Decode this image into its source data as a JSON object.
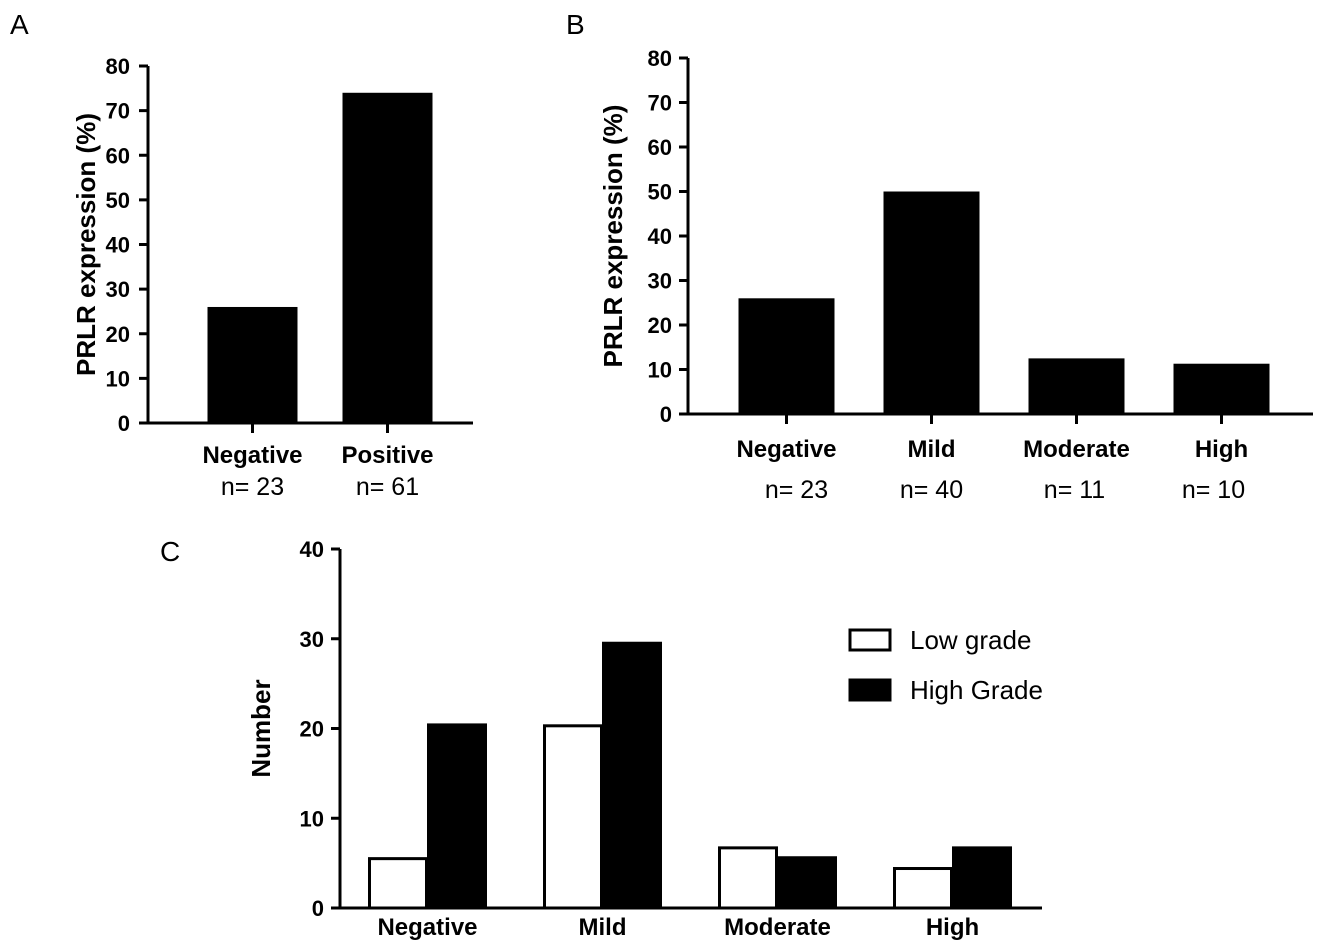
{
  "chart_data": [
    {
      "panel": "A",
      "type": "bar",
      "ylabel": "PRLR expression (%)",
      "ylim": [
        0,
        80
      ],
      "yticks": [
        0,
        10,
        20,
        30,
        40,
        50,
        60,
        70,
        80
      ],
      "categories": [
        "Negative",
        "Positive"
      ],
      "n_labels": [
        "n= 23",
        "n= 61"
      ],
      "values": [
        26,
        74
      ],
      "colors": {
        "bar": "#000000"
      }
    },
    {
      "panel": "B",
      "type": "bar",
      "ylabel": "PRLR expression (%)",
      "ylim": [
        0,
        80
      ],
      "yticks": [
        0,
        10,
        20,
        30,
        40,
        50,
        60,
        70,
        80
      ],
      "categories": [
        "Negative",
        "Mild",
        "Moderate",
        "High"
      ],
      "n_labels": [
        "n= 23",
        "n= 40",
        "n= 11",
        "n= 10"
      ],
      "values": [
        26,
        50,
        12.5,
        11.3
      ],
      "colors": {
        "bar": "#000000"
      }
    },
    {
      "panel": "C",
      "type": "bar",
      "ylabel": "Number",
      "ylim": [
        0,
        40
      ],
      "yticks": [
        0,
        10,
        20,
        30,
        40
      ],
      "categories": [
        "Negative",
        "Mild",
        "Moderate",
        "High"
      ],
      "series": [
        {
          "name": "Low grade",
          "values": [
            5.5,
            20.3,
            6.7,
            4.4
          ],
          "fill": "#ffffff"
        },
        {
          "name": "High Grade",
          "values": [
            20.4,
            29.5,
            5.6,
            6.7
          ],
          "fill": "#000000"
        }
      ],
      "legend": "top-right"
    }
  ]
}
